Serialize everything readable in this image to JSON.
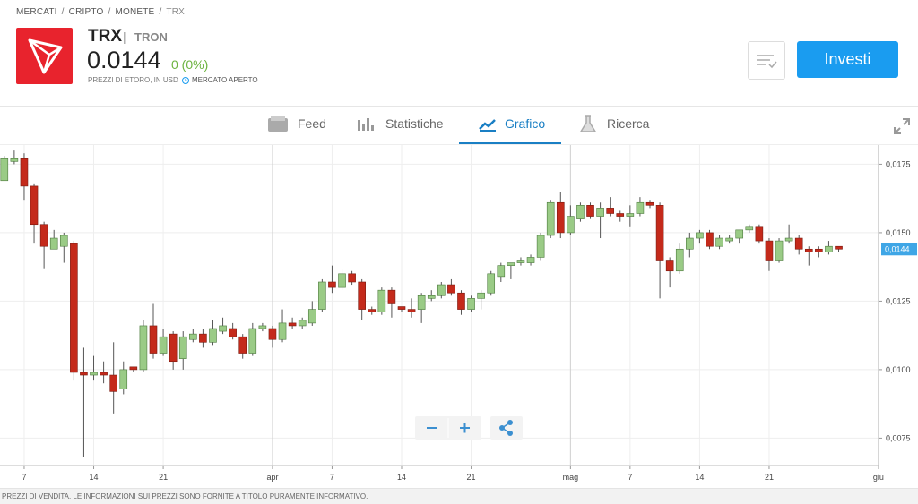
{
  "breadcrumb": [
    "MERCATI",
    "CRIPTO",
    "MONETE",
    "TRX"
  ],
  "header": {
    "symbol": "TRX",
    "name": "TRON",
    "price": "0.0144",
    "change": "0 (0%)",
    "note": "PREZZI DI ETORO, IN USD",
    "status": "MERCATO APERTO",
    "button": "Investi"
  },
  "tabs": [
    "Feed",
    "Statistiche",
    "Grafico",
    "Ricerca"
  ],
  "footer": "PREZZI DI VENDITA. LE INFORMAZIONI SUI PREZZI SONO FORNITE A TITOLO PURAMENTE INFORMATIVO.",
  "chart_data": {
    "type": "candlestick",
    "up_color": "#9acb86",
    "down_color": "#c42a1b",
    "grid": true,
    "categories": [
      null,
      null,
      "7",
      null,
      null,
      null,
      null,
      null,
      null,
      "14",
      null,
      null,
      null,
      null,
      null,
      null,
      "21",
      null,
      null,
      null,
      null,
      null,
      null,
      null,
      null,
      null,
      null,
      "apr",
      null,
      null,
      null,
      null,
      null,
      "7",
      null,
      null,
      null,
      null,
      null,
      null,
      "14",
      null,
      null,
      null,
      null,
      null,
      null,
      "21",
      null,
      null,
      null,
      null,
      null,
      null,
      null,
      null,
      null,
      "mag",
      null,
      null,
      null,
      null,
      null,
      "7",
      null,
      null,
      null,
      null,
      null,
      null,
      "14",
      null,
      null,
      null,
      null,
      null,
      null,
      "21",
      null,
      null,
      null,
      null,
      null,
      null,
      null,
      null,
      null,
      null,
      "giu"
    ],
    "open": [
      0.0169,
      0.0176,
      0.0177,
      0.0167,
      0.0153,
      0.0144,
      0.0145,
      0.0146,
      0.0099,
      0.0098,
      0.0099,
      0.0098,
      0.0093,
      0.0101,
      0.01,
      0.0116,
      0.0106,
      0.0113,
      0.0104,
      0.0111,
      0.0113,
      0.011,
      0.0114,
      0.0115,
      0.0112,
      0.0106,
      0.0115,
      0.0115,
      0.0111,
      0.0117,
      0.0116,
      0.0117,
      0.0122,
      0.0132,
      0.013,
      0.0135,
      0.0132,
      0.0122,
      0.0121,
      0.0129,
      0.0123,
      0.0122,
      0.0122,
      0.0126,
      0.0127,
      0.0131,
      0.0128,
      0.0122,
      0.0126,
      0.0128,
      0.0134,
      0.0138,
      0.0139,
      0.0139,
      0.0141,
      0.0149,
      0.0161,
      0.015,
      0.0155,
      0.016,
      0.0156,
      0.0159,
      0.0157,
      0.0156,
      0.0157,
      0.0161,
      0.016,
      0.014,
      0.0136,
      0.0144,
      0.0148,
      0.015,
      0.0145,
      0.0147,
      0.0148,
      0.0151,
      0.0152,
      0.0147,
      0.014,
      0.0147,
      0.0148,
      0.0144,
      0.0144,
      0.0143,
      0.0145,
      null,
      null,
      null,
      null
    ],
    "high": [
      0.0178,
      0.018,
      0.0179,
      0.0168,
      0.0154,
      0.0151,
      0.015,
      0.0147,
      0.0108,
      0.0105,
      0.0103,
      0.011,
      0.0103,
      0.0101,
      0.0118,
      0.0124,
      0.0115,
      0.0114,
      0.0114,
      0.0115,
      0.0115,
      0.0118,
      0.0119,
      0.0117,
      0.0113,
      0.0117,
      0.0117,
      0.0116,
      0.0122,
      0.0119,
      0.0119,
      0.0125,
      0.0133,
      0.0138,
      0.0137,
      0.0136,
      0.0133,
      0.0123,
      0.013,
      0.013,
      0.0123,
      0.0126,
      0.0128,
      0.0129,
      0.0132,
      0.0133,
      0.0129,
      0.0127,
      0.0129,
      0.0136,
      0.0139,
      0.0139,
      0.0141,
      0.0142,
      0.015,
      0.0162,
      0.0165,
      0.016,
      0.0161,
      0.0161,
      0.0161,
      0.0163,
      0.0158,
      0.016,
      0.0163,
      0.0162,
      0.0161,
      0.0141,
      0.0146,
      0.015,
      0.0151,
      0.0151,
      0.0149,
      0.0149,
      0.0151,
      0.0153,
      0.0153,
      0.0148,
      0.0148,
      0.0153,
      0.0149,
      0.0145,
      0.0145,
      0.0147,
      0.0145,
      null,
      null,
      null,
      null
    ],
    "low": [
      0.0169,
      0.0175,
      0.0162,
      0.0146,
      0.0137,
      0.0144,
      0.0139,
      0.0096,
      0.0068,
      0.0096,
      0.0095,
      0.0084,
      0.0091,
      0.0099,
      0.0099,
      0.0104,
      0.0105,
      0.01,
      0.01,
      0.011,
      0.0108,
      0.0109,
      0.0113,
      0.0111,
      0.0104,
      0.0105,
      0.0114,
      0.0108,
      0.011,
      0.0115,
      0.0115,
      0.0116,
      0.0121,
      0.0128,
      0.0129,
      0.0131,
      0.0118,
      0.012,
      0.012,
      0.0119,
      0.0121,
      0.0119,
      0.0117,
      0.0125,
      0.0126,
      0.0127,
      0.012,
      0.0121,
      0.0122,
      0.0127,
      0.0132,
      0.0133,
      0.0138,
      0.0138,
      0.014,
      0.0148,
      0.0148,
      0.0149,
      0.0154,
      0.0155,
      0.0148,
      0.0156,
      0.0154,
      0.0152,
      0.0156,
      0.0159,
      0.0126,
      0.013,
      0.0135,
      0.0141,
      0.0146,
      0.0144,
      0.0144,
      0.0146,
      0.0146,
      0.015,
      0.0146,
      0.0136,
      0.0139,
      0.0146,
      0.0142,
      0.0138,
      0.0141,
      0.0142,
      0.0143,
      null,
      null,
      null,
      null
    ],
    "close": [
      0.0177,
      0.0177,
      0.0167,
      0.0153,
      0.0145,
      0.0148,
      0.0149,
      0.0099,
      0.0098,
      0.0099,
      0.0098,
      0.0092,
      0.01,
      0.01,
      0.0116,
      0.0106,
      0.0112,
      0.0103,
      0.0112,
      0.0113,
      0.011,
      0.0115,
      0.0116,
      0.0112,
      0.0106,
      0.0115,
      0.0116,
      0.0111,
      0.0117,
      0.0116,
      0.0118,
      0.0122,
      0.0132,
      0.013,
      0.0135,
      0.0132,
      0.0122,
      0.0121,
      0.0129,
      0.0124,
      0.0122,
      0.0121,
      0.0127,
      0.0127,
      0.0131,
      0.0128,
      0.0122,
      0.0126,
      0.0128,
      0.0135,
      0.0138,
      0.0139,
      0.014,
      0.0141,
      0.0149,
      0.0161,
      0.015,
      0.0156,
      0.016,
      0.0156,
      0.0159,
      0.0157,
      0.0156,
      0.0157,
      0.0161,
      0.016,
      0.014,
      0.0136,
      0.0144,
      0.0148,
      0.015,
      0.0145,
      0.0148,
      0.0148,
      0.0151,
      0.0152,
      0.0147,
      0.014,
      0.0147,
      0.0148,
      0.0144,
      0.0143,
      0.0143,
      0.0145,
      0.0144,
      null,
      null,
      null,
      null
    ],
    "ylim": [
      0.0065,
      0.0182
    ],
    "yticks": [
      {
        "value": 0.0075,
        "label": "0,0075"
      },
      {
        "value": 0.01,
        "label": "0,0100"
      },
      {
        "value": 0.0125,
        "label": "0,0125"
      },
      {
        "value": 0.015,
        "label": "0,0150"
      },
      {
        "value": 0.0175,
        "label": "0,0175"
      }
    ],
    "last_label": {
      "value": 0.0144,
      "label": "0,0144"
    }
  }
}
